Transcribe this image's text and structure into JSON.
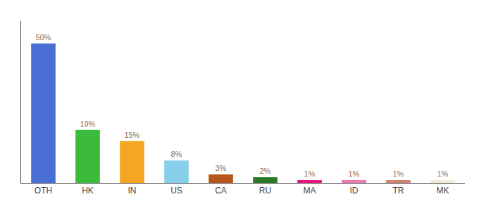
{
  "chart_data": {
    "type": "bar",
    "categories": [
      "OTH",
      "HK",
      "IN",
      "US",
      "CA",
      "RU",
      "MA",
      "ID",
      "TR",
      "MK"
    ],
    "values": [
      50,
      19,
      15,
      8,
      3,
      2,
      1,
      1,
      1,
      1
    ],
    "value_labels": [
      "50%",
      "19%",
      "15%",
      "8%",
      "3%",
      "2%",
      "1%",
      "1%",
      "1%",
      "1%"
    ],
    "colors": [
      "#4a6fd4",
      "#3cba3c",
      "#f5a623",
      "#87ceeb",
      "#b5561a",
      "#2a7a2a",
      "#e8157a",
      "#e87ab0",
      "#d28070",
      "#f0ead8"
    ],
    "ylim": [
      0,
      58
    ],
    "data_labels": true,
    "tick_labels": "x",
    "grid": false
  }
}
